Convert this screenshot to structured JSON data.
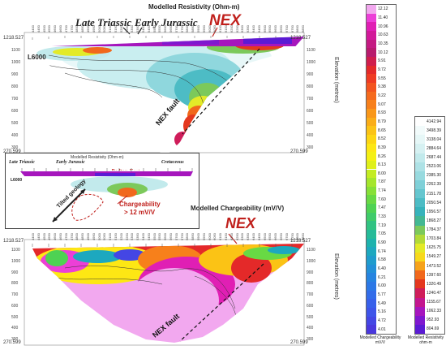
{
  "resistivity_section": {
    "title": "Modelled Resistivity (Ohm-m)",
    "annot_late_triassic": "Late Triassic",
    "annot_early_jurassic": "Early Jurassic",
    "annot_nex": "NEX",
    "line_label": "L6000",
    "fault_label": "NEX fault",
    "elevation_label": "Elevation (metres)",
    "coord_top_left": "1218.527",
    "coord_top_right": "1218.527",
    "coord_bottom_left": "270.599",
    "coord_bottom_right": "270.599",
    "elevation_ticks": [
      "1100",
      "1000",
      "900",
      "800",
      "700",
      "600",
      "500",
      "400",
      "300"
    ],
    "station_labels": [
      "4400",
      "4450",
      "4500",
      "4550",
      "4600",
      "4650",
      "4700",
      "4750",
      "4800",
      "4850",
      "4900",
      "4950",
      "5000",
      "5050",
      "5100",
      "5150",
      "5200",
      "5250",
      "5300",
      "5350",
      "5400",
      "5450",
      "5500",
      "5550",
      "5600",
      "5650",
      "5700",
      "5750",
      "5800",
      "5850",
      "5900",
      "5950",
      "6000",
      "6050",
      "6100",
      "6150",
      "6200",
      "6250",
      "6300",
      "6350",
      "6400",
      "6450",
      "6500",
      "6550",
      "6600",
      "6650",
      "6700",
      "6750",
      "6800",
      "6850"
    ]
  },
  "inset": {
    "title": "Modelled Resistivity (Ohm-m)",
    "annot_late_triassic": "Late Triassic",
    "annot_early_jurassic": "Early Jurassic",
    "annot_redton_east": "Redton East",
    "annot_cretaceous": "Cretaceous",
    "line_label": "L6000",
    "tilted_geology": "Tilted geology",
    "chargeability_note_1": "Chargeability",
    "chargeability_note_2": "> 12 mV/V"
  },
  "chargeability_section": {
    "title": "Modelled Chargeability (mV/V)",
    "annot_nex": "NEX",
    "fault_label": "NEX fault",
    "elevation_label": "Elevation (metres)",
    "coord_top_left": "1218.527",
    "coord_top_right": "1218.527",
    "coord_bottom_left": "270.599",
    "coord_bottom_right": "270.599",
    "elevation_ticks": [
      "1100",
      "1000",
      "900",
      "800",
      "700",
      "600",
      "500",
      "400",
      "300"
    ]
  },
  "chargeability_legend": {
    "caption_1": "Modelled Chargeability",
    "caption_2": "mV/V",
    "values": [
      "12.12",
      "11.40",
      "10.96",
      "10.63",
      "10.35",
      "10.12",
      "9.91",
      "9.72",
      "9.55",
      "9.38",
      "9.22",
      "9.07",
      "8.93",
      "8.79",
      "8.65",
      "8.52",
      "8.39",
      "8.26",
      "8.13",
      "8.00",
      "7.87",
      "7.74",
      "7.60",
      "7.47",
      "7.33",
      "7.19",
      "7.05",
      "6.90",
      "6.74",
      "6.58",
      "6.40",
      "6.21",
      "6.00",
      "5.77",
      "5.49",
      "5.16",
      "4.72",
      "4.01"
    ],
    "colors": [
      "#f2a8ef",
      "#ec3fd7",
      "#e01fb4",
      "#d2199a",
      "#c41a82",
      "#b81b6d",
      "#d01d4c",
      "#e42929",
      "#ef3b23",
      "#f3541f",
      "#f56a1d",
      "#f7801b",
      "#f99719",
      "#faad17",
      "#fbc315",
      "#fdd613",
      "#fde714",
      "#f4f014",
      "#dff01a",
      "#c3ec22",
      "#a5e62c",
      "#87e037",
      "#68d944",
      "#4ed253",
      "#3fcb6a",
      "#31c382",
      "#25bb99",
      "#1db2ad",
      "#1da8bf",
      "#1f9ccd",
      "#2290d8",
      "#2684e0",
      "#2c78e6",
      "#326ce9",
      "#3860ea",
      "#3e54e9",
      "#4446e4",
      "#4a38dd"
    ]
  },
  "resistivity_legend": {
    "caption_1": "Modelled Resistivity",
    "caption_2": "ohm-m",
    "values": [
      "4142.94",
      "3498.39",
      "3138.04",
      "2884.64",
      "2687.44",
      "2523.06",
      "2385.30",
      "2262.39",
      "2151.78",
      "2050.54",
      "1956.57",
      "1868.27",
      "1784.37",
      "1703.84",
      "1625.75",
      "1549.27",
      "1473.52",
      "1397.60",
      "1320.49",
      "1240.47",
      "1155.67",
      "1062.33",
      "952.93",
      "804.69"
    ],
    "colors": [
      "#ffffff",
      "#f2fbfb",
      "#e6f7f7",
      "#d6f1f2",
      "#c2eaec",
      "#aee2e6",
      "#98dadf",
      "#7fd0d8",
      "#65c6cf",
      "#4dbcc5",
      "#37b3bb",
      "#43b893",
      "#7cc95b",
      "#b2da38",
      "#e3ea28",
      "#f7d91c",
      "#f6a21a",
      "#f1681c",
      "#e4381f",
      "#cf1d5a",
      "#c3168e",
      "#a616bd",
      "#7f18cf",
      "#5b1bd4"
    ]
  }
}
